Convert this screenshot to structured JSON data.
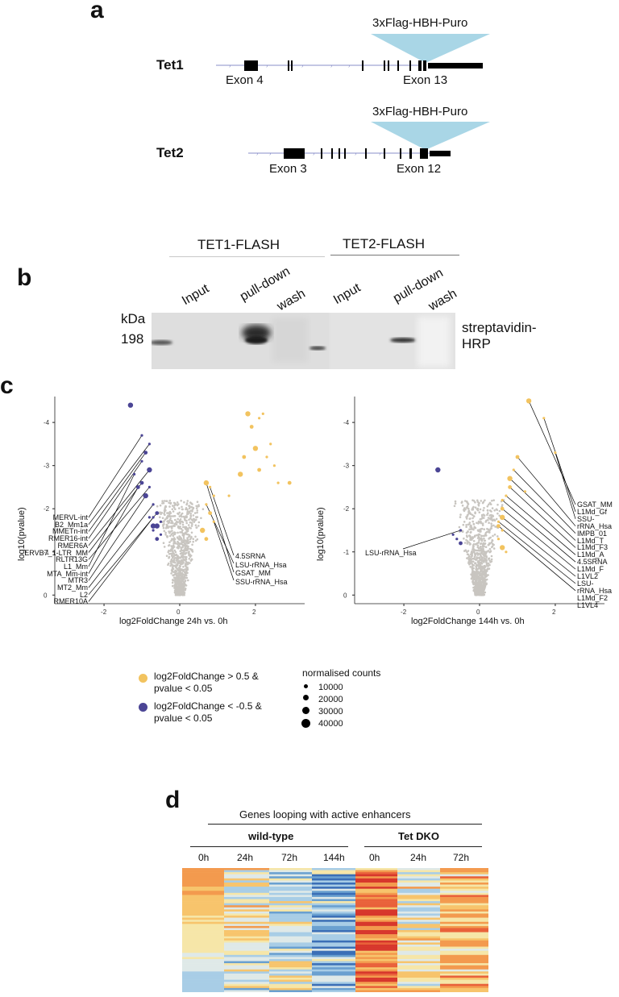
{
  "panel_a": {
    "letter": "a",
    "genes": [
      {
        "name": "Tet1",
        "insert": "3xFlag-HBH-Puro",
        "exon_left": "Exon 4",
        "exon_right": "Exon 13"
      },
      {
        "name": "Tet2",
        "insert": "3xFlag-HBH-Puro",
        "exon_left": "Exon 3",
        "exon_right": "Exon 12"
      }
    ]
  },
  "panel_b": {
    "letter": "b",
    "groups": [
      "TET1-FLASH",
      "TET2-FLASH"
    ],
    "lanes": [
      "Input",
      "pull-down",
      "wash",
      "Input",
      "pull-down",
      "wash"
    ],
    "kda_label": "kDa",
    "kda_value": "198",
    "detection": "streptavidin-HRP"
  },
  "panel_c": {
    "letter": "c",
    "left_plot": {
      "xlabel": "log2FoldChange 24h vs. 0h",
      "ylabel": "log10(pvalue)",
      "xticks": [
        "-2",
        "0",
        "2"
      ],
      "yticks": [
        "-4",
        "-3",
        "-2",
        "-1",
        "0"
      ],
      "left_labels": [
        "MERVL-int",
        "B2_Mm1a",
        "MMETn-int",
        "RMER16-int",
        "RMER6A",
        "ERVB7_1-LTR_MM",
        "RLTR13G",
        "L1_Mm",
        "MTA_Mm-int",
        "MTR3",
        "MT2_Mm",
        "L2",
        "RMER10A"
      ],
      "right_labels": [
        "4.5SRNA",
        "LSU-rRNA_Hsa",
        "GSAT_MM",
        "SSU-rRNA_Hsa"
      ]
    },
    "right_plot": {
      "xlabel": "log2FoldChange 144h vs. 0h",
      "ylabel": "log10(pvalue)",
      "xticks": [
        "-2",
        "0",
        "2"
      ],
      "yticks": [
        "-4",
        "-3",
        "-2",
        "-1",
        "0"
      ],
      "left_labels": [
        "LSU-rRNA_Hsa"
      ],
      "right_labels": [
        "GSAT_MM",
        "L1Md_Gf",
        "SSU-rRNA_Hsa",
        "IMPB_01",
        "L1Md_T",
        "L1Md_F3",
        "L1Md_A",
        "4.5SRNA",
        "L1Md_F",
        "L1VL2",
        "LSU-rRNA_Hsa",
        "L1Md_F2",
        "L1VL4"
      ]
    },
    "legend": {
      "up_line1": "log2FoldChange > 0.5 &",
      "up_line2": "pvalue < 0.05",
      "down_line1": "log2FoldChange < -0.5 &",
      "down_line2": "pvalue < 0.05",
      "size_title": "normalised counts",
      "sizes": [
        "10000",
        "20000",
        "30000",
        "40000"
      ],
      "up_color": "#f2c35f",
      "down_color": "#4b4595",
      "ns_color": "#c8c5c0"
    },
    "chart_data": [
      {
        "type": "scatter",
        "title": "",
        "xlabel": "log2FoldChange 24h vs. 0h",
        "ylabel": "log10(pvalue)",
        "xlim": [
          -3.3,
          3.3
        ],
        "ylim": [
          0.2,
          -4.6
        ],
        "series": [
          {
            "name": "up",
            "points": [
              [
                1.8,
                -4.2
              ],
              [
                2.1,
                -4.1
              ],
              [
                2.2,
                -4.2
              ],
              [
                1.9,
                -3.9
              ],
              [
                2.4,
                -3.5
              ],
              [
                2.0,
                -3.4
              ],
              [
                1.7,
                -3.2
              ],
              [
                2.3,
                -3.2
              ],
              [
                2.5,
                -3.0
              ],
              [
                2.1,
                -2.9
              ],
              [
                1.6,
                -2.8
              ],
              [
                2.6,
                -2.6
              ],
              [
                2.9,
                -2.6
              ],
              [
                1.3,
                -2.3
              ],
              [
                0.9,
                -2.3
              ],
              [
                0.7,
                -2.6
              ],
              [
                0.8,
                -2.5
              ],
              [
                0.7,
                -2.1
              ],
              [
                0.8,
                -1.9
              ],
              [
                0.9,
                -1.7
              ],
              [
                0.6,
                -1.5
              ],
              [
                0.7,
                -1.3
              ]
            ]
          },
          {
            "name": "down",
            "points": [
              [
                -1.3,
                -4.4
              ],
              [
                -1.0,
                -3.7
              ],
              [
                -0.8,
                -3.5
              ],
              [
                -0.9,
                -3.3
              ],
              [
                -1.0,
                -3.1
              ],
              [
                -0.8,
                -2.9
              ],
              [
                -1.0,
                -2.6
              ],
              [
                -0.8,
                -2.5
              ],
              [
                -1.2,
                -2.8
              ],
              [
                -1.1,
                -2.5
              ],
              [
                -0.9,
                -2.3
              ],
              [
                -0.7,
                -2.1
              ],
              [
                -0.6,
                -1.9
              ],
              [
                -0.7,
                -1.8
              ],
              [
                -0.5,
                -1.7
              ],
              [
                -0.6,
                -1.6
              ],
              [
                -0.7,
                -1.5
              ],
              [
                -0.5,
                -1.4
              ],
              [
                -0.6,
                -1.3
              ],
              [
                -0.8,
                -1.8
              ],
              [
                -0.7,
                -1.6
              ]
            ]
          }
        ]
      },
      {
        "type": "scatter",
        "title": "",
        "xlabel": "log2FoldChange 144h vs. 0h",
        "ylabel": "log10(pvalue)",
        "xlim": [
          -3.3,
          3.3
        ],
        "ylim": [
          0.2,
          -4.6
        ],
        "series": [
          {
            "name": "up",
            "points": [
              [
                1.3,
                -4.5
              ],
              [
                1.7,
                -4.1
              ],
              [
                2.0,
                -3.3
              ],
              [
                1.0,
                -3.2
              ],
              [
                0.9,
                -2.9
              ],
              [
                0.8,
                -2.7
              ],
              [
                0.8,
                -2.5
              ],
              [
                0.7,
                -2.3
              ],
              [
                0.6,
                -2.2
              ],
              [
                0.6,
                -2.0
              ],
              [
                0.6,
                -1.8
              ],
              [
                0.5,
                -1.7
              ],
              [
                0.5,
                -1.6
              ],
              [
                0.6,
                -1.5
              ],
              [
                0.5,
                -1.3
              ],
              [
                0.6,
                -1.1
              ],
              [
                0.7,
                -1.0
              ],
              [
                1.2,
                -2.4
              ]
            ]
          },
          {
            "name": "down",
            "points": [
              [
                -1.1,
                -2.9
              ],
              [
                -0.5,
                -1.5
              ],
              [
                -0.6,
                -1.3
              ],
              [
                -0.5,
                -1.2
              ],
              [
                -0.7,
                -1.4
              ]
            ]
          }
        ]
      }
    ]
  },
  "panel_d": {
    "letter": "d",
    "title": "Genes looping with active enhancers",
    "group_wt": "wild-type",
    "group_dko": "Tet DKO",
    "columns": [
      "0h",
      "24h",
      "72h",
      "144h",
      "0h",
      "24h",
      "72h"
    ]
  }
}
